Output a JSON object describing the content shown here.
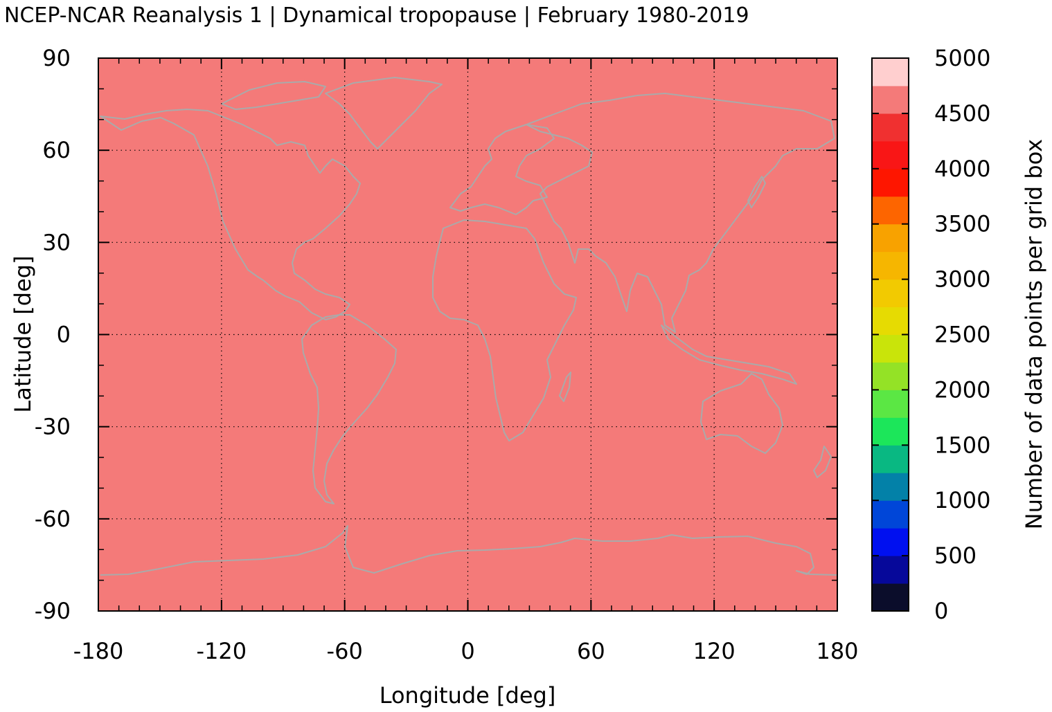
{
  "chart_data": {
    "type": "heatmap",
    "title": "NCEP-NCAR Reanalysis 1 | Dynamical tropopause | February 1980-2019",
    "xlabel": "Longitude [deg]",
    "ylabel": "Latitude [deg]",
    "xlim": [
      -180,
      180
    ],
    "ylim": [
      -90,
      90
    ],
    "x_ticks": [
      "-180",
      "-120",
      "-60",
      "0",
      "60",
      "120",
      "180"
    ],
    "y_ticks": [
      "90",
      "60",
      "30",
      "0",
      "-30",
      "-60",
      "-90"
    ],
    "grid": true,
    "field_value": 4600,
    "field_color": "#f47a79",
    "coastline_color": "#aaaaaa",
    "colorbar": {
      "label": "Number of data points per grid box",
      "ticks": [
        "5000",
        "4500",
        "4000",
        "3500",
        "3000",
        "2500",
        "2000",
        "1500",
        "1000",
        "500",
        "0"
      ],
      "range": [
        0,
        5000
      ],
      "levels": [
        {
          "from": 0,
          "to": 250,
          "color": "#0b0d2b"
        },
        {
          "from": 250,
          "to": 500,
          "color": "#06089a"
        },
        {
          "from": 500,
          "to": 750,
          "color": "#0010f0"
        },
        {
          "from": 750,
          "to": 1000,
          "color": "#0046d8"
        },
        {
          "from": 1000,
          "to": 1250,
          "color": "#0381a8"
        },
        {
          "from": 1250,
          "to": 1500,
          "color": "#09b882"
        },
        {
          "from": 1500,
          "to": 1750,
          "color": "#1ce65a"
        },
        {
          "from": 1750,
          "to": 2000,
          "color": "#5be744"
        },
        {
          "from": 2000,
          "to": 2250,
          "color": "#94e226"
        },
        {
          "from": 2250,
          "to": 2500,
          "color": "#c9e40a"
        },
        {
          "from": 2500,
          "to": 2750,
          "color": "#e6db02"
        },
        {
          "from": 2750,
          "to": 3000,
          "color": "#f2ca01"
        },
        {
          "from": 3000,
          "to": 3250,
          "color": "#f6b600"
        },
        {
          "from": 3250,
          "to": 3500,
          "color": "#f8a200"
        },
        {
          "from": 3500,
          "to": 3750,
          "color": "#fd6500"
        },
        {
          "from": 3750,
          "to": 4000,
          "color": "#fe1600"
        },
        {
          "from": 4000,
          "to": 4250,
          "color": "#f91616"
        },
        {
          "from": 4250,
          "to": 4500,
          "color": "#f03030"
        },
        {
          "from": 4500,
          "to": 4750,
          "color": "#f47a79"
        },
        {
          "from": 4750,
          "to": 5000,
          "color": "#ffcfcf"
        }
      ]
    }
  }
}
